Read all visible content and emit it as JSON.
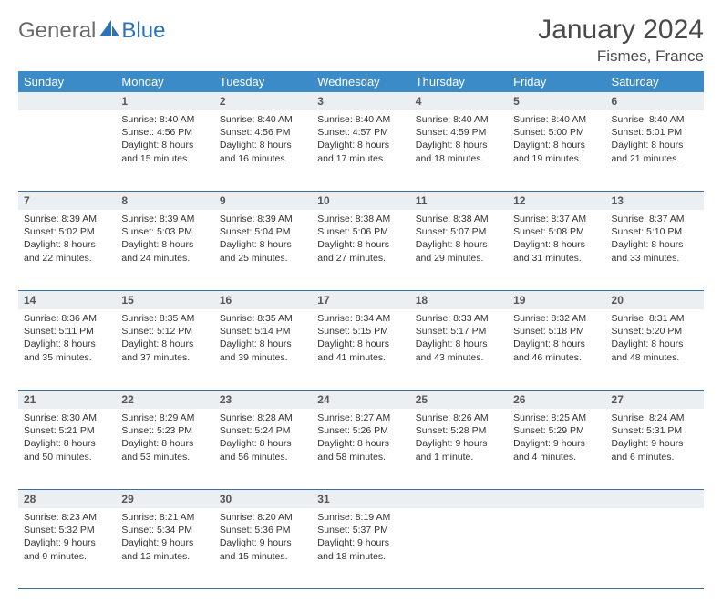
{
  "brand": {
    "general": "General",
    "blue": "Blue"
  },
  "title": "January 2024",
  "location": "Fismes, France",
  "colors": {
    "header_bg": "#3b8bc9",
    "header_text": "#ffffff",
    "daynum_bg": "#eceff2",
    "daynum_text": "#555555",
    "border": "#3b6fa3",
    "body_text": "#333333",
    "logo_gray": "#6a6a6a",
    "logo_blue": "#2d72b8"
  },
  "weekdays": [
    "Sunday",
    "Monday",
    "Tuesday",
    "Wednesday",
    "Thursday",
    "Friday",
    "Saturday"
  ],
  "weeks": [
    {
      "nums": [
        "",
        "1",
        "2",
        "3",
        "4",
        "5",
        "6"
      ],
      "cells": [
        null,
        {
          "sunrise": "Sunrise: 8:40 AM",
          "sunset": "Sunset: 4:56 PM",
          "day1": "Daylight: 8 hours",
          "day2": "and 15 minutes."
        },
        {
          "sunrise": "Sunrise: 8:40 AM",
          "sunset": "Sunset: 4:56 PM",
          "day1": "Daylight: 8 hours",
          "day2": "and 16 minutes."
        },
        {
          "sunrise": "Sunrise: 8:40 AM",
          "sunset": "Sunset: 4:57 PM",
          "day1": "Daylight: 8 hours",
          "day2": "and 17 minutes."
        },
        {
          "sunrise": "Sunrise: 8:40 AM",
          "sunset": "Sunset: 4:59 PM",
          "day1": "Daylight: 8 hours",
          "day2": "and 18 minutes."
        },
        {
          "sunrise": "Sunrise: 8:40 AM",
          "sunset": "Sunset: 5:00 PM",
          "day1": "Daylight: 8 hours",
          "day2": "and 19 minutes."
        },
        {
          "sunrise": "Sunrise: 8:40 AM",
          "sunset": "Sunset: 5:01 PM",
          "day1": "Daylight: 8 hours",
          "day2": "and 21 minutes."
        }
      ]
    },
    {
      "nums": [
        "7",
        "8",
        "9",
        "10",
        "11",
        "12",
        "13"
      ],
      "cells": [
        {
          "sunrise": "Sunrise: 8:39 AM",
          "sunset": "Sunset: 5:02 PM",
          "day1": "Daylight: 8 hours",
          "day2": "and 22 minutes."
        },
        {
          "sunrise": "Sunrise: 8:39 AM",
          "sunset": "Sunset: 5:03 PM",
          "day1": "Daylight: 8 hours",
          "day2": "and 24 minutes."
        },
        {
          "sunrise": "Sunrise: 8:39 AM",
          "sunset": "Sunset: 5:04 PM",
          "day1": "Daylight: 8 hours",
          "day2": "and 25 minutes."
        },
        {
          "sunrise": "Sunrise: 8:38 AM",
          "sunset": "Sunset: 5:06 PM",
          "day1": "Daylight: 8 hours",
          "day2": "and 27 minutes."
        },
        {
          "sunrise": "Sunrise: 8:38 AM",
          "sunset": "Sunset: 5:07 PM",
          "day1": "Daylight: 8 hours",
          "day2": "and 29 minutes."
        },
        {
          "sunrise": "Sunrise: 8:37 AM",
          "sunset": "Sunset: 5:08 PM",
          "day1": "Daylight: 8 hours",
          "day2": "and 31 minutes."
        },
        {
          "sunrise": "Sunrise: 8:37 AM",
          "sunset": "Sunset: 5:10 PM",
          "day1": "Daylight: 8 hours",
          "day2": "and 33 minutes."
        }
      ]
    },
    {
      "nums": [
        "14",
        "15",
        "16",
        "17",
        "18",
        "19",
        "20"
      ],
      "cells": [
        {
          "sunrise": "Sunrise: 8:36 AM",
          "sunset": "Sunset: 5:11 PM",
          "day1": "Daylight: 8 hours",
          "day2": "and 35 minutes."
        },
        {
          "sunrise": "Sunrise: 8:35 AM",
          "sunset": "Sunset: 5:12 PM",
          "day1": "Daylight: 8 hours",
          "day2": "and 37 minutes."
        },
        {
          "sunrise": "Sunrise: 8:35 AM",
          "sunset": "Sunset: 5:14 PM",
          "day1": "Daylight: 8 hours",
          "day2": "and 39 minutes."
        },
        {
          "sunrise": "Sunrise: 8:34 AM",
          "sunset": "Sunset: 5:15 PM",
          "day1": "Daylight: 8 hours",
          "day2": "and 41 minutes."
        },
        {
          "sunrise": "Sunrise: 8:33 AM",
          "sunset": "Sunset: 5:17 PM",
          "day1": "Daylight: 8 hours",
          "day2": "and 43 minutes."
        },
        {
          "sunrise": "Sunrise: 8:32 AM",
          "sunset": "Sunset: 5:18 PM",
          "day1": "Daylight: 8 hours",
          "day2": "and 46 minutes."
        },
        {
          "sunrise": "Sunrise: 8:31 AM",
          "sunset": "Sunset: 5:20 PM",
          "day1": "Daylight: 8 hours",
          "day2": "and 48 minutes."
        }
      ]
    },
    {
      "nums": [
        "21",
        "22",
        "23",
        "24",
        "25",
        "26",
        "27"
      ],
      "cells": [
        {
          "sunrise": "Sunrise: 8:30 AM",
          "sunset": "Sunset: 5:21 PM",
          "day1": "Daylight: 8 hours",
          "day2": "and 50 minutes."
        },
        {
          "sunrise": "Sunrise: 8:29 AM",
          "sunset": "Sunset: 5:23 PM",
          "day1": "Daylight: 8 hours",
          "day2": "and 53 minutes."
        },
        {
          "sunrise": "Sunrise: 8:28 AM",
          "sunset": "Sunset: 5:24 PM",
          "day1": "Daylight: 8 hours",
          "day2": "and 56 minutes."
        },
        {
          "sunrise": "Sunrise: 8:27 AM",
          "sunset": "Sunset: 5:26 PM",
          "day1": "Daylight: 8 hours",
          "day2": "and 58 minutes."
        },
        {
          "sunrise": "Sunrise: 8:26 AM",
          "sunset": "Sunset: 5:28 PM",
          "day1": "Daylight: 9 hours",
          "day2": "and 1 minute."
        },
        {
          "sunrise": "Sunrise: 8:25 AM",
          "sunset": "Sunset: 5:29 PM",
          "day1": "Daylight: 9 hours",
          "day2": "and 4 minutes."
        },
        {
          "sunrise": "Sunrise: 8:24 AM",
          "sunset": "Sunset: 5:31 PM",
          "day1": "Daylight: 9 hours",
          "day2": "and 6 minutes."
        }
      ]
    },
    {
      "nums": [
        "28",
        "29",
        "30",
        "31",
        "",
        "",
        ""
      ],
      "cells": [
        {
          "sunrise": "Sunrise: 8:23 AM",
          "sunset": "Sunset: 5:32 PM",
          "day1": "Daylight: 9 hours",
          "day2": "and 9 minutes."
        },
        {
          "sunrise": "Sunrise: 8:21 AM",
          "sunset": "Sunset: 5:34 PM",
          "day1": "Daylight: 9 hours",
          "day2": "and 12 minutes."
        },
        {
          "sunrise": "Sunrise: 8:20 AM",
          "sunset": "Sunset: 5:36 PM",
          "day1": "Daylight: 9 hours",
          "day2": "and 15 minutes."
        },
        {
          "sunrise": "Sunrise: 8:19 AM",
          "sunset": "Sunset: 5:37 PM",
          "day1": "Daylight: 9 hours",
          "day2": "and 18 minutes."
        },
        null,
        null,
        null
      ]
    }
  ]
}
